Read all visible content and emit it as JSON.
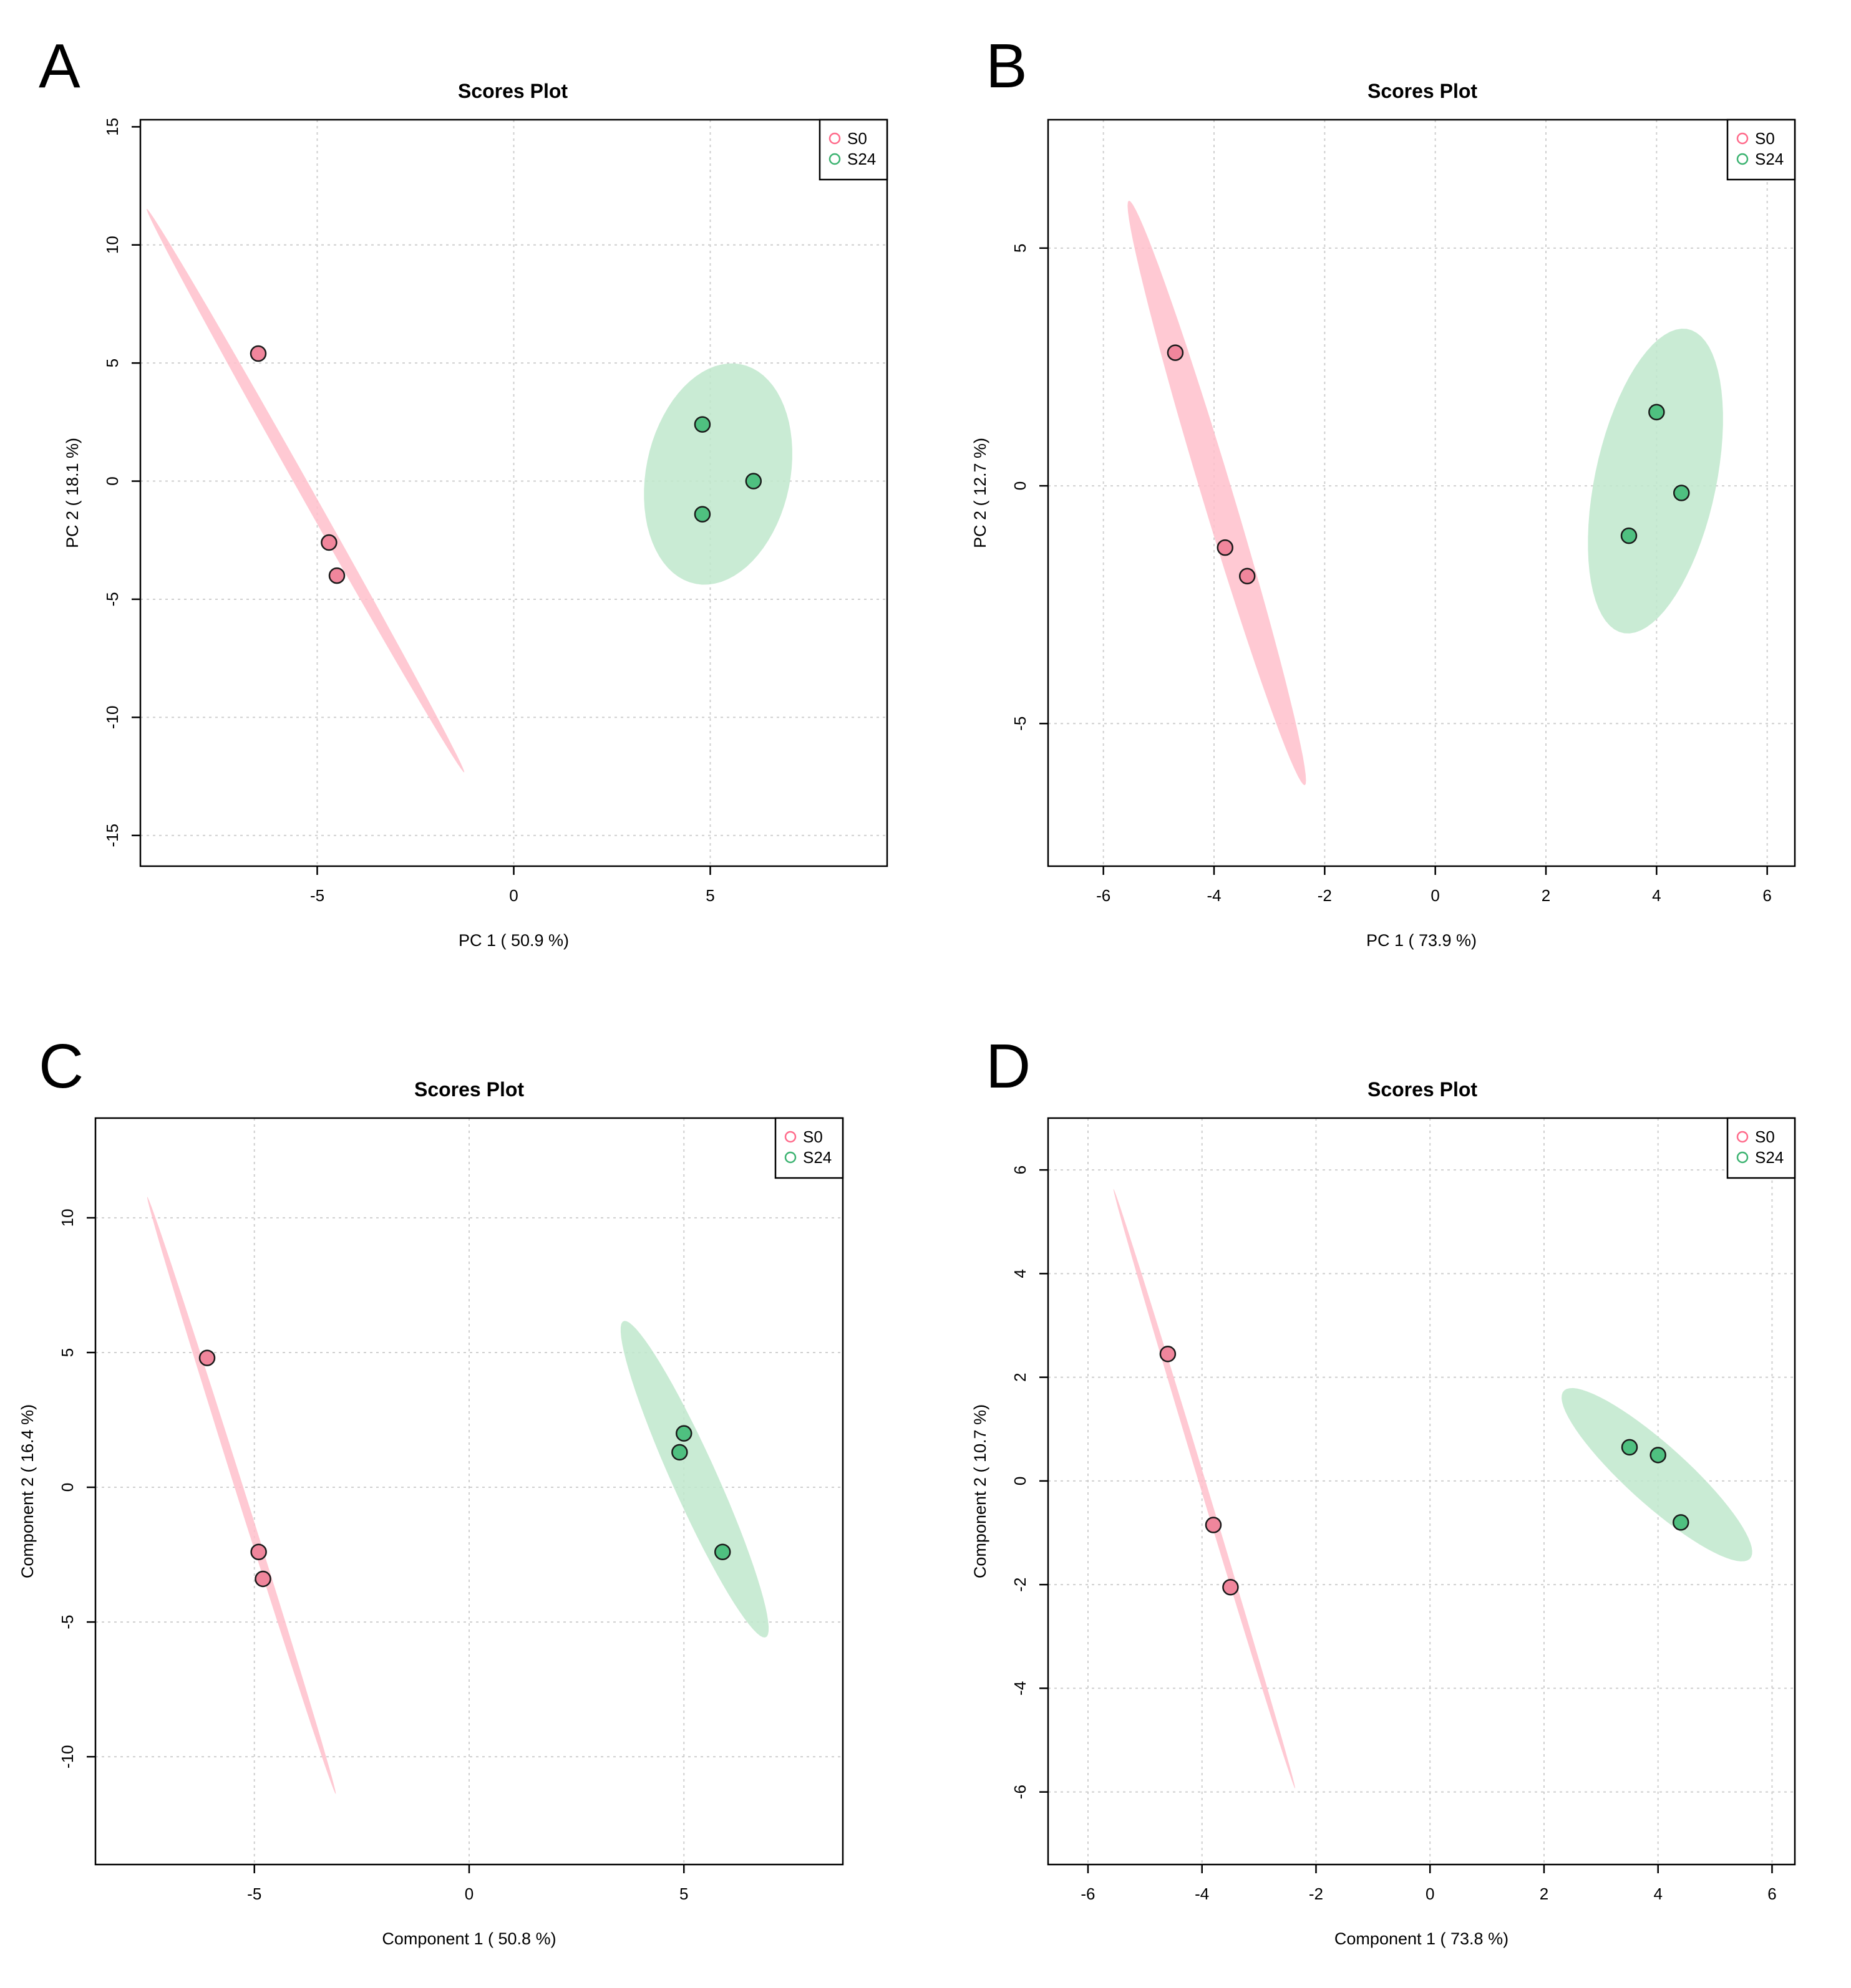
{
  "chart_data": [
    {
      "panel": "A",
      "type": "scatter",
      "title": "Scores Plot",
      "xlabel": "PC 1 ( 50.9 %)",
      "ylabel": "PC 2 ( 18.1 %)",
      "xlim": [
        -9.5,
        9.5
      ],
      "ylim": [
        -16.3,
        15.3
      ],
      "xticks": [
        -5,
        0,
        5
      ],
      "yticks": [
        -15,
        -10,
        -5,
        0,
        5,
        10,
        15
      ],
      "xgrid": [
        -5,
        0,
        5
      ],
      "ygrid": [
        -15,
        -10,
        -5,
        0,
        5,
        10
      ],
      "legend": [
        "S0",
        "S24"
      ],
      "series": [
        {
          "name": "S0",
          "color": "#ff6b8b",
          "fill": "#f0869c",
          "ellipse_color": "#ffc0cb",
          "points": [
            [
              -6.5,
              5.4
            ],
            [
              -4.7,
              -2.6
            ],
            [
              -4.5,
              -4.0
            ]
          ],
          "ellipse": {
            "center": [
              -5.3,
              -0.4
            ],
            "semi_major": 12.6,
            "semi_minor": 0.17,
            "angle_deg": -71.3
          }
        },
        {
          "name": "S24",
          "color": "#3cb371",
          "fill": "#4fc080",
          "ellipse_color": "#bfe7cd",
          "points": [
            [
              4.8,
              2.4
            ],
            [
              6.1,
              0.0
            ],
            [
              4.8,
              -1.4
            ]
          ],
          "ellipse": {
            "center": [
              5.2,
              0.3
            ],
            "semi_major": 4.7,
            "semi_minor": 1.85,
            "angle_deg": 85
          }
        }
      ]
    },
    {
      "panel": "B",
      "type": "scatter",
      "title": "Scores Plot",
      "xlabel": "PC 1 ( 73.9 %)",
      "ylabel": "PC 2 ( 12.7 %)",
      "xlim": [
        -7.0,
        6.5
      ],
      "ylim": [
        -8.0,
        7.7
      ],
      "xticks": [
        -6,
        -4,
        -2,
        0,
        2,
        4,
        6
      ],
      "yticks": [
        -5,
        0,
        5
      ],
      "xgrid": [
        -6,
        -4,
        -2,
        0,
        2,
        4,
        6
      ],
      "ygrid": [
        -5,
        0,
        5
      ],
      "legend": [
        "S0",
        "S24"
      ],
      "series": [
        {
          "name": "S0",
          "color": "#ff6b8b",
          "fill": "#f0869c",
          "ellipse_color": "#ffc0cb",
          "points": [
            [
              -4.7,
              2.8
            ],
            [
              -3.8,
              -1.3
            ],
            [
              -3.4,
              -1.9
            ]
          ],
          "ellipse": {
            "center": [
              -3.95,
              -0.15
            ],
            "semi_major": 6.35,
            "semi_minor": 0.28,
            "angle_deg": -75.5
          }
        },
        {
          "name": "S24",
          "color": "#3cb371",
          "fill": "#4fc080",
          "ellipse_color": "#bfe7cd",
          "points": [
            [
              4.0,
              1.55
            ],
            [
              4.45,
              -0.15
            ],
            [
              3.5,
              -1.05
            ]
          ],
          "ellipse": {
            "center": [
              3.98,
              0.1
            ],
            "semi_major": 3.25,
            "semi_minor": 1.1,
            "angle_deg": 80
          }
        }
      ]
    },
    {
      "panel": "C",
      "type": "scatter",
      "title": "Scores Plot",
      "xlabel": "Component 1 ( 50.8 %)",
      "ylabel": "Component 2 ( 16.4 %)",
      "xlim": [
        -8.7,
        8.7
      ],
      "ylim": [
        -14.0,
        13.7
      ],
      "xticks": [
        -5,
        0,
        5
      ],
      "yticks": [
        -10,
        -5,
        0,
        5,
        10
      ],
      "xgrid": [
        -5,
        0,
        5
      ],
      "ygrid": [
        -10,
        -5,
        0,
        5,
        10
      ],
      "legend": [
        "S0",
        "S24"
      ],
      "series": [
        {
          "name": "S0",
          "color": "#ff6b8b",
          "fill": "#f0869c",
          "ellipse_color": "#ffc0cb",
          "points": [
            [
              -6.1,
              4.8
            ],
            [
              -4.9,
              -2.4
            ],
            [
              -4.8,
              -3.4
            ]
          ],
          "ellipse": {
            "center": [
              -5.3,
              -0.3
            ],
            "semi_major": 11.3,
            "semi_minor": 0.1,
            "angle_deg": -78.8
          }
        },
        {
          "name": "S24",
          "color": "#3cb371",
          "fill": "#4fc080",
          "ellipse_color": "#bfe7cd",
          "points": [
            [
              5.0,
              2.0
            ],
            [
              4.9,
              1.3
            ],
            [
              5.9,
              -2.4
            ]
          ],
          "ellipse": {
            "center": [
              5.25,
              0.3
            ],
            "semi_major": 6.1,
            "semi_minor": 0.55,
            "angle_deg": -74.4
          }
        }
      ]
    },
    {
      "panel": "D",
      "type": "scatter",
      "title": "Scores Plot",
      "xlabel": "Component 1 ( 73.8 %)",
      "ylabel": "Component 2 ( 10.7 %)",
      "xlim": [
        -6.7,
        6.4
      ],
      "ylim": [
        -7.4,
        7.0
      ],
      "xticks": [
        -6,
        -4,
        -2,
        0,
        2,
        4,
        6
      ],
      "yticks": [
        -6,
        -4,
        -2,
        0,
        2,
        4,
        6
      ],
      "xgrid": [
        -6,
        -4,
        -2,
        0,
        2,
        4,
        6
      ],
      "ygrid": [
        -6,
        -4,
        -2,
        0,
        2,
        4,
        6
      ],
      "legend": [
        "S0",
        "S24"
      ],
      "series": [
        {
          "name": "S0",
          "color": "#ff6b8b",
          "fill": "#f0869c",
          "ellipse_color": "#ffc0cb",
          "points": [
            [
              -4.6,
              2.45
            ],
            [
              -3.8,
              -0.85
            ],
            [
              -3.5,
              -2.05
            ]
          ],
          "ellipse": {
            "center": [
              -3.96,
              -0.15
            ],
            "semi_major": 6.0,
            "semi_minor": 0.06,
            "angle_deg": -74.6
          }
        },
        {
          "name": "S24",
          "color": "#3cb371",
          "fill": "#4fc080",
          "ellipse_color": "#bfe7cd",
          "points": [
            [
              3.5,
              0.65
            ],
            [
              4.0,
              0.5
            ],
            [
              4.4,
              -0.8
            ]
          ],
          "ellipse": {
            "center": [
              3.98,
              0.12
            ],
            "semi_major": 2.3,
            "semi_minor": 0.55,
            "angle_deg": -45
          }
        }
      ]
    }
  ]
}
